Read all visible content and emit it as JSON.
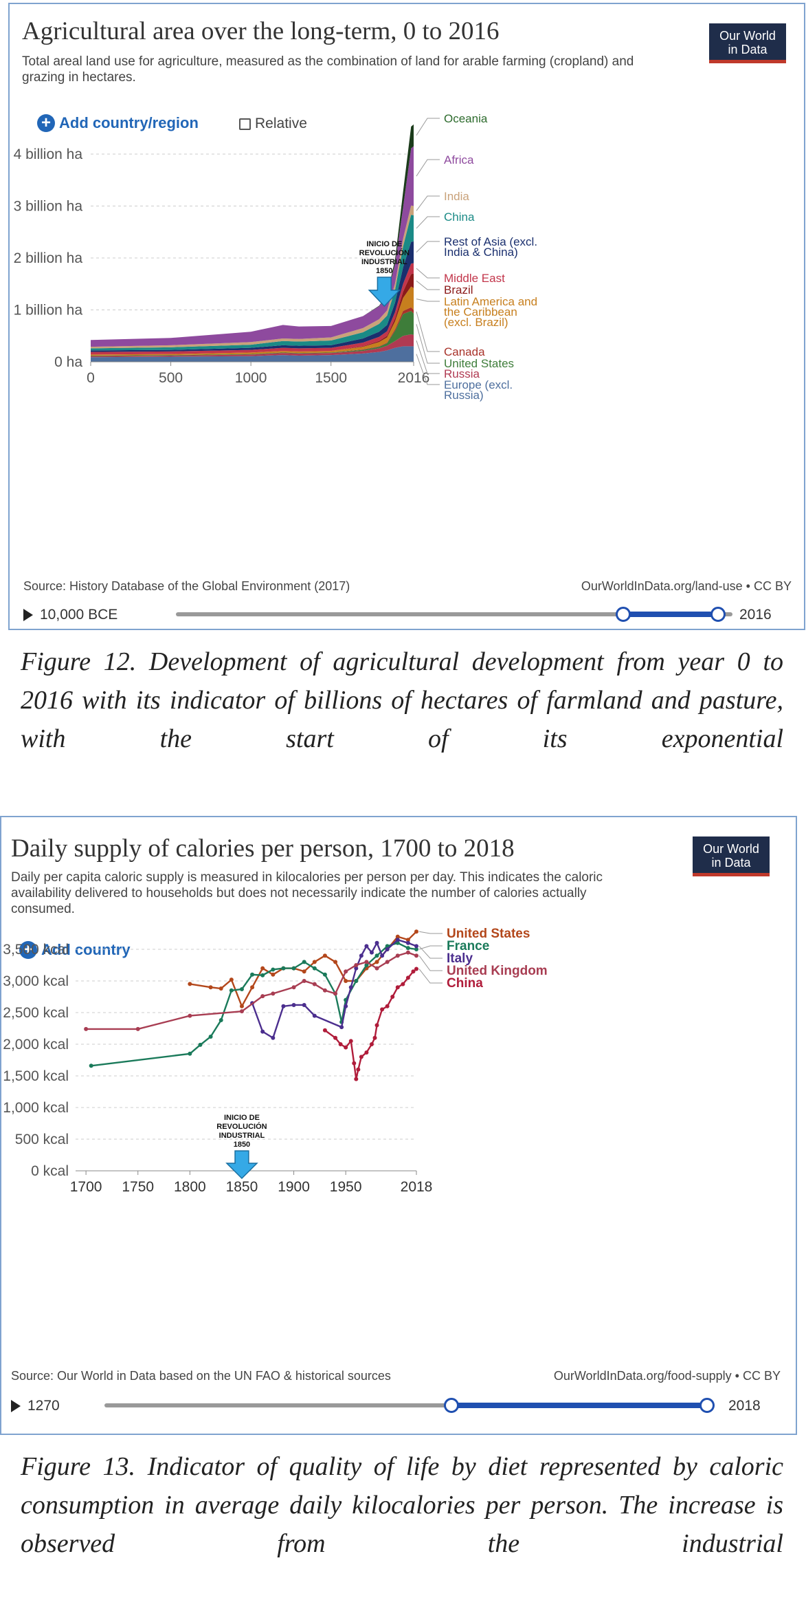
{
  "figure1": {
    "title": "Agricultural area over the long-term, 0 to 2016",
    "subtitle": "Total areal land use for agriculture, measured as the combination of land for arable farming (cropland) and grazing in hectares.",
    "logo": [
      "Our World",
      "in Data"
    ],
    "add_label": "Add country/region",
    "relative_label": "Relative",
    "source": "Source: History Database of the Global Environment (2017)",
    "credit": "OurWorldInData.org/land-use • CC BY",
    "timeline_start": "10,000 BCE",
    "timeline_end": "2016",
    "caption": "Figure 12. Development of agricultural development from year 0 to 2016 with its indicator of billions of hectares of farmland and pasture, with the start of its exponential"
  },
  "figure2": {
    "title": "Daily supply of calories per person, 1700 to 2018",
    "subtitle": "Daily per capita caloric supply is measured in kilocalories per person per day. This indicates the caloric availability delivered to households but does not necessarily indicate the number of calories actually consumed.",
    "logo": [
      "Our World",
      "in Data"
    ],
    "add_label": "Add country",
    "source": "Source: Our World in Data based on the UN FAO & historical sources",
    "credit": "OurWorldInData.org/food-supply • CC BY",
    "timeline_start": "1270",
    "timeline_end": "2018",
    "caption": "Figure 13. Indicator of quality of life by diet represented by caloric consumption in average daily kilocalories per person. The increase is observed from the industrial"
  },
  "colors": {
    "grid": "#cccccc",
    "accent": "#2166b7",
    "arrow": "#35a9e6"
  },
  "chart_data": [
    {
      "type": "area",
      "title": "Agricultural area over the long-term, 0 to 2016",
      "xlabel": "",
      "ylabel": "",
      "xlim": [
        0,
        2016
      ],
      "ylim": [
        0,
        4.9
      ],
      "y_ticks": [
        {
          "v": 0,
          "label": "0 ha"
        },
        {
          "v": 1,
          "label": "1 billion ha"
        },
        {
          "v": 2,
          "label": "2 billion ha"
        },
        {
          "v": 3,
          "label": "3 billion ha"
        },
        {
          "v": 4,
          "label": "4 billion ha"
        }
      ],
      "x_ticks": [
        {
          "v": 0,
          "label": "0"
        },
        {
          "v": 500,
          "label": "500"
        },
        {
          "v": 1000,
          "label": "1000"
        },
        {
          "v": 1500,
          "label": "1500"
        },
        {
          "v": 2016,
          "label": "2016"
        }
      ],
      "x": [
        0,
        500,
        1000,
        1200,
        1300,
        1500,
        1700,
        1800,
        1850,
        1900,
        1950,
        2000,
        2016
      ],
      "series": [
        {
          "name": "Europe (excl. Russia)",
          "color": "#4e6f9e",
          "values": [
            0.09,
            0.1,
            0.11,
            0.13,
            0.12,
            0.13,
            0.16,
            0.19,
            0.22,
            0.27,
            0.3,
            0.3,
            0.3
          ]
        },
        {
          "name": "Russia",
          "color": "#b03a52",
          "values": [
            0.02,
            0.02,
            0.03,
            0.04,
            0.04,
            0.04,
            0.05,
            0.07,
            0.09,
            0.13,
            0.2,
            0.23,
            0.22
          ]
        },
        {
          "name": "United States",
          "color": "#3e7d3a",
          "values": [
            0.01,
            0.01,
            0.01,
            0.01,
            0.01,
            0.01,
            0.02,
            0.03,
            0.05,
            0.2,
            0.42,
            0.45,
            0.41
          ]
        },
        {
          "name": "Canada",
          "color": "#a8332a",
          "values": [
            0.0,
            0.0,
            0.0,
            0.0,
            0.0,
            0.0,
            0.01,
            0.01,
            0.01,
            0.03,
            0.06,
            0.07,
            0.07
          ]
        },
        {
          "name": "Latin America and the Caribbean (excl. Brazil)",
          "color": "#c77f1e",
          "values": [
            0.02,
            0.02,
            0.03,
            0.03,
            0.03,
            0.03,
            0.05,
            0.08,
            0.1,
            0.15,
            0.25,
            0.4,
            0.42
          ]
        },
        {
          "name": "Brazil",
          "color": "#8b1a1a",
          "values": [
            0.0,
            0.0,
            0.0,
            0.0,
            0.0,
            0.0,
            0.01,
            0.02,
            0.03,
            0.06,
            0.12,
            0.24,
            0.28
          ]
        },
        {
          "name": "Middle East",
          "color": "#c2354a",
          "values": [
            0.05,
            0.05,
            0.05,
            0.06,
            0.06,
            0.06,
            0.07,
            0.08,
            0.09,
            0.12,
            0.15,
            0.2,
            0.2
          ]
        },
        {
          "name": "Rest of Asia (excl. India & China)",
          "color": "#1a2f6e",
          "values": [
            0.03,
            0.03,
            0.04,
            0.05,
            0.05,
            0.05,
            0.08,
            0.1,
            0.12,
            0.18,
            0.32,
            0.42,
            0.42
          ]
        },
        {
          "name": "China",
          "color": "#1a8a86",
          "values": [
            0.04,
            0.05,
            0.06,
            0.08,
            0.08,
            0.09,
            0.12,
            0.15,
            0.18,
            0.25,
            0.4,
            0.52,
            0.5
          ]
        },
        {
          "name": "India",
          "color": "#c9a27a",
          "values": [
            0.03,
            0.04,
            0.05,
            0.05,
            0.05,
            0.06,
            0.08,
            0.09,
            0.1,
            0.12,
            0.15,
            0.18,
            0.18
          ]
        },
        {
          "name": "Africa",
          "color": "#8e4a9e",
          "values": [
            0.13,
            0.14,
            0.2,
            0.26,
            0.24,
            0.22,
            0.23,
            0.25,
            0.28,
            0.38,
            0.6,
            1.1,
            1.15
          ]
        },
        {
          "name": "Oceania",
          "color": "#1b3b1b",
          "values": [
            0.0,
            0.0,
            0.0,
            0.0,
            0.0,
            0.0,
            0.0,
            0.01,
            0.02,
            0.08,
            0.3,
            0.42,
            0.42
          ]
        }
      ],
      "annotation": {
        "lines": [
          "INICIO DE",
          "REVOLUCIÓN",
          "INDUSTRIAL",
          "1850"
        ],
        "x": 1850
      }
    },
    {
      "type": "line",
      "title": "Daily supply of calories per person, 1700 to 2018",
      "xlabel": "",
      "ylabel": "",
      "xlim": [
        1690,
        2018
      ],
      "ylim": [
        0,
        3800
      ],
      "y_ticks": [
        {
          "v": 0,
          "label": "0 kcal"
        },
        {
          "v": 500,
          "label": "500 kcal"
        },
        {
          "v": 1000,
          "label": "1,000 kcal"
        },
        {
          "v": 1500,
          "label": "1,500 kcal"
        },
        {
          "v": 2000,
          "label": "2,000 kcal"
        },
        {
          "v": 2500,
          "label": "2,500 kcal"
        },
        {
          "v": 3000,
          "label": "3,000 kcal"
        },
        {
          "v": 3500,
          "label": "3,500 kcal"
        }
      ],
      "x_ticks": [
        {
          "v": 1700,
          "label": "1700"
        },
        {
          "v": 1750,
          "label": "1750"
        },
        {
          "v": 1800,
          "label": "1800"
        },
        {
          "v": 1850,
          "label": "1850"
        },
        {
          "v": 1900,
          "label": "1900"
        },
        {
          "v": 1950,
          "label": "1950"
        },
        {
          "v": 2018,
          "label": "2018"
        }
      ],
      "series": [
        {
          "name": "United States",
          "color": "#b3471b",
          "points": [
            [
              1800,
              2952
            ],
            [
              1820,
              2900
            ],
            [
              1830,
              2880
            ],
            [
              1840,
              3020
            ],
            [
              1850,
              2600
            ],
            [
              1860,
              2900
            ],
            [
              1870,
              3200
            ],
            [
              1880,
              3100
            ],
            [
              1890,
              3200
            ],
            [
              1900,
              3200
            ],
            [
              1910,
              3150
            ],
            [
              1920,
              3300
            ],
            [
              1930,
              3400
            ],
            [
              1940,
              3300
            ],
            [
              1950,
              3000
            ],
            [
              1960,
              3000
            ],
            [
              1970,
              3200
            ],
            [
              1980,
              3300
            ],
            [
              1990,
              3500
            ],
            [
              2000,
              3700
            ],
            [
              2010,
              3650
            ],
            [
              2018,
              3780
            ]
          ]
        },
        {
          "name": "France",
          "color": "#1a7a5a",
          "points": [
            [
              1705,
              1660
            ],
            [
              1800,
              1850
            ],
            [
              1810,
              1990
            ],
            [
              1820,
              2120
            ],
            [
              1830,
              2380
            ],
            [
              1840,
              2850
            ],
            [
              1850,
              2870
            ],
            [
              1860,
              3100
            ],
            [
              1870,
              3090
            ],
            [
              1880,
              3180
            ],
            [
              1890,
              3200
            ],
            [
              1900,
              3200
            ],
            [
              1910,
              3300
            ],
            [
              1920,
              3200
            ],
            [
              1930,
              3100
            ],
            [
              1940,
              2800
            ],
            [
              1946,
              2350
            ],
            [
              1950,
              2700
            ],
            [
              1960,
              3000
            ],
            [
              1970,
              3250
            ],
            [
              1980,
              3400
            ],
            [
              1990,
              3550
            ],
            [
              2000,
              3600
            ],
            [
              2010,
              3520
            ],
            [
              2018,
              3500
            ]
          ]
        },
        {
          "name": "Italy",
          "color": "#4b2e8e",
          "points": [
            [
              1860,
              2650
            ],
            [
              1870,
              2200
            ],
            [
              1880,
              2100
            ],
            [
              1890,
              2600
            ],
            [
              1900,
              2620
            ],
            [
              1910,
              2620
            ],
            [
              1920,
              2450
            ],
            [
              1946,
              2270
            ],
            [
              1950,
              2600
            ],
            [
              1955,
              2900
            ],
            [
              1960,
              3200
            ],
            [
              1965,
              3400
            ],
            [
              1970,
              3550
            ],
            [
              1975,
              3450
            ],
            [
              1980,
              3600
            ],
            [
              1985,
              3400
            ],
            [
              1990,
              3500
            ],
            [
              2000,
              3650
            ],
            [
              2010,
              3600
            ],
            [
              2018,
              3550
            ]
          ]
        },
        {
          "name": "United Kingdom",
          "color": "#a83d52",
          "points": [
            [
              1700,
              2240
            ],
            [
              1750,
              2240
            ],
            [
              1800,
              2450
            ],
            [
              1850,
              2520
            ],
            [
              1870,
              2760
            ],
            [
              1880,
              2800
            ],
            [
              1900,
              2900
            ],
            [
              1910,
              3000
            ],
            [
              1920,
              2950
            ],
            [
              1930,
              2850
            ],
            [
              1940,
              2800
            ],
            [
              1950,
              3150
            ],
            [
              1960,
              3250
            ],
            [
              1970,
              3300
            ],
            [
              1980,
              3200
            ],
            [
              1990,
              3300
            ],
            [
              2000,
              3400
            ],
            [
              2010,
              3450
            ],
            [
              2018,
              3400
            ]
          ]
        },
        {
          "name": "China",
          "color": "#b01c3a",
          "points": [
            [
              1930,
              2220
            ],
            [
              1940,
              2100
            ],
            [
              1945,
              2000
            ],
            [
              1950,
              1950
            ],
            [
              1955,
              2050
            ],
            [
              1958,
              1700
            ],
            [
              1960,
              1450
            ],
            [
              1962,
              1600
            ],
            [
              1965,
              1800
            ],
            [
              1970,
              1870
            ],
            [
              1975,
              2000
            ],
            [
              1978,
              2100
            ],
            [
              1980,
              2300
            ],
            [
              1985,
              2550
            ],
            [
              1990,
              2600
            ],
            [
              1995,
              2750
            ],
            [
              2000,
              2900
            ],
            [
              2005,
              2950
            ],
            [
              2010,
              3050
            ],
            [
              2015,
              3150
            ],
            [
              2018,
              3190
            ]
          ]
        }
      ],
      "annotation": {
        "lines": [
          "INICIO DE",
          "REVOLUCIÓN",
          "INDUSTRIAL",
          "1850"
        ],
        "x": 1850
      }
    }
  ]
}
